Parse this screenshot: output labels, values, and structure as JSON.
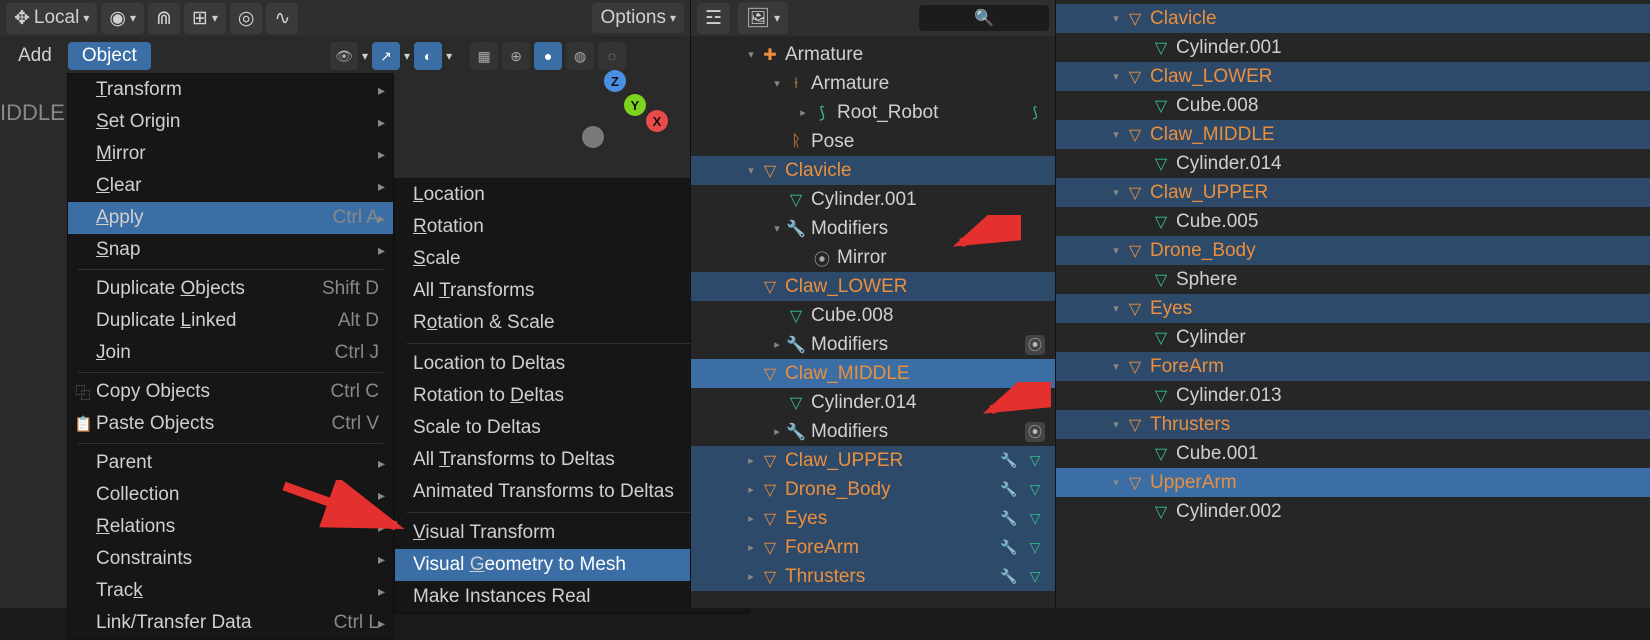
{
  "header": {
    "orientation_label": "Local",
    "options_label": "Options"
  },
  "viewport": {
    "add_label": "Add",
    "object_label": "Object",
    "side_text": "IDDLE"
  },
  "object_menu": {
    "items": [
      {
        "label": "Transform",
        "sub": true,
        "u": 0
      },
      {
        "label": "Set Origin",
        "sub": true,
        "u": 0
      },
      {
        "label": "Mirror",
        "sub": true,
        "u": 0
      },
      {
        "label": "Clear",
        "sub": true,
        "u": 0
      },
      {
        "label": "Apply",
        "shortcut": "Ctrl A",
        "sub": true,
        "sel": true,
        "u": 0
      },
      {
        "label": "Snap",
        "sub": true,
        "u": 0
      },
      {
        "sep": true
      },
      {
        "label": "Duplicate Objects",
        "shortcut": "Shift D",
        "u": 10
      },
      {
        "label": "Duplicate Linked",
        "shortcut": "Alt D",
        "u": 10
      },
      {
        "label": "Join",
        "shortcut": "Ctrl J",
        "u": 0
      },
      {
        "sep": true
      },
      {
        "label": "Copy Objects",
        "shortcut": "Ctrl C",
        "icon": "⿻"
      },
      {
        "label": "Paste Objects",
        "shortcut": "Ctrl V",
        "icon": "📋"
      },
      {
        "sep": true
      },
      {
        "label": "Parent",
        "sub": true
      },
      {
        "label": "Collection",
        "sub": true
      },
      {
        "label": "Relations",
        "sub": true,
        "u": 0
      },
      {
        "label": "Constraints",
        "sub": true
      },
      {
        "label": "Track",
        "sub": true,
        "u": 4
      },
      {
        "label": "Link/Transfer Data",
        "shortcut": "Ctrl L",
        "sub": true
      }
    ]
  },
  "apply_submenu": {
    "items": [
      {
        "label": "Location",
        "u": 0
      },
      {
        "label": "Rotation",
        "u": 0
      },
      {
        "label": "Scale",
        "u": 0
      },
      {
        "label": "All Transforms",
        "u": 4
      },
      {
        "label": "Rotation & Scale",
        "u": 1
      },
      {
        "sep": true
      },
      {
        "label": "Location to Deltas"
      },
      {
        "label": "Rotation to Deltas",
        "u": 12
      },
      {
        "label": "Scale to Deltas"
      },
      {
        "label": "All Transforms to Deltas",
        "u": 4
      },
      {
        "label": "Animated Transforms to Deltas"
      },
      {
        "sep": true
      },
      {
        "label": "Visual Transform",
        "u": 0
      },
      {
        "label": "Visual Geometry to Mesh",
        "sel": true,
        "u": 7
      },
      {
        "label": "Make Instances Real"
      }
    ]
  },
  "gizmo": {
    "x": "X",
    "y": "Y",
    "z": "Z"
  },
  "outliner_mid": [
    {
      "ind": 1,
      "tri": "▾",
      "ico": "arm",
      "label": "Armature",
      "cls": ""
    },
    {
      "ind": 2,
      "tri": "▾",
      "ico": "arm2",
      "label": "Armature"
    },
    {
      "ind": 3,
      "tri": "▸",
      "ico": "bone",
      "label": "Root_Robot",
      "trail_bone": true
    },
    {
      "ind": 2,
      "tri": "",
      "ico": "pose",
      "label": "Pose"
    },
    {
      "ind": 1,
      "tri": "▾",
      "ico": "mesh",
      "label": "Clavicle",
      "orange": true,
      "sel": true
    },
    {
      "ind": 2,
      "tri": "",
      "ico": "data",
      "label": "Cylinder.001"
    },
    {
      "ind": 2,
      "tri": "▾",
      "ico": "mod",
      "label": "Modifiers"
    },
    {
      "ind": 3,
      "tri": "",
      "ico": "mirror",
      "label": "Mirror",
      "arrow": 1
    },
    {
      "ind": 1,
      "tri": "",
      "ico": "mesh",
      "label": "Claw_LOWER",
      "orange": true,
      "sel": true
    },
    {
      "ind": 2,
      "tri": "",
      "ico": "data",
      "label": "Cube.008"
    },
    {
      "ind": 2,
      "tri": "▸",
      "ico": "mod",
      "label": "Modifiers",
      "trail_mirror": true
    },
    {
      "ind": 1,
      "tri": "",
      "ico": "mesh",
      "label": "Claw_MIDDLE",
      "orange": true,
      "active": true
    },
    {
      "ind": 2,
      "tri": "",
      "ico": "data",
      "label": "Cylinder.014"
    },
    {
      "ind": 2,
      "tri": "▸",
      "ico": "mod",
      "label": "Modifiers",
      "trail_mirror": true,
      "arrow": 2
    },
    {
      "ind": 1,
      "tri": "▸",
      "ico": "mesh",
      "label": "Claw_UPPER",
      "orange": true,
      "sel": true,
      "trail_md": true
    },
    {
      "ind": 1,
      "tri": "▸",
      "ico": "mesh",
      "label": "Drone_Body",
      "orange": true,
      "sel": true,
      "trail_md": true
    },
    {
      "ind": 1,
      "tri": "▸",
      "ico": "mesh",
      "label": "Eyes",
      "orange": true,
      "sel": true,
      "trail_md": true
    },
    {
      "ind": 1,
      "tri": "▸",
      "ico": "mesh",
      "label": "ForeArm",
      "orange": true,
      "sel": true,
      "trail_md": true
    },
    {
      "ind": 1,
      "tri": "▸",
      "ico": "mesh",
      "label": "Thrusters",
      "orange": true,
      "sel": true,
      "trail_md": true
    }
  ],
  "outliner_right": [
    {
      "ind": 1,
      "tri": "▾",
      "ico": "mesh",
      "label": "Clavicle",
      "orange": true,
      "sel": true
    },
    {
      "ind": 2,
      "tri": "",
      "ico": "data",
      "label": "Cylinder.001"
    },
    {
      "ind": 1,
      "tri": "▾",
      "ico": "mesh",
      "label": "Claw_LOWER",
      "orange": true,
      "sel": true
    },
    {
      "ind": 2,
      "tri": "",
      "ico": "data",
      "label": "Cube.008"
    },
    {
      "ind": 1,
      "tri": "▾",
      "ico": "mesh",
      "label": "Claw_MIDDLE",
      "orange": true,
      "sel": true
    },
    {
      "ind": 2,
      "tri": "",
      "ico": "data",
      "label": "Cylinder.014"
    },
    {
      "ind": 1,
      "tri": "▾",
      "ico": "mesh",
      "label": "Claw_UPPER",
      "orange": true,
      "sel": true
    },
    {
      "ind": 2,
      "tri": "",
      "ico": "data",
      "label": "Cube.005"
    },
    {
      "ind": 1,
      "tri": "▾",
      "ico": "mesh",
      "label": "Drone_Body",
      "orange": true,
      "sel": true
    },
    {
      "ind": 2,
      "tri": "",
      "ico": "data",
      "label": "Sphere"
    },
    {
      "ind": 1,
      "tri": "▾",
      "ico": "mesh",
      "label": "Eyes",
      "orange": true,
      "sel": true
    },
    {
      "ind": 2,
      "tri": "",
      "ico": "data",
      "label": "Cylinder"
    },
    {
      "ind": 1,
      "tri": "▾",
      "ico": "mesh",
      "label": "ForeArm",
      "orange": true,
      "sel": true
    },
    {
      "ind": 2,
      "tri": "",
      "ico": "data",
      "label": "Cylinder.013"
    },
    {
      "ind": 1,
      "tri": "▾",
      "ico": "mesh",
      "label": "Thrusters",
      "orange": true,
      "sel": true
    },
    {
      "ind": 2,
      "tri": "",
      "ico": "data",
      "label": "Cube.001"
    },
    {
      "ind": 1,
      "tri": "▾",
      "ico": "mesh",
      "label": "UpperArm",
      "orange": true,
      "active": true
    },
    {
      "ind": 2,
      "tri": "",
      "ico": "data",
      "label": "Cylinder.002"
    }
  ],
  "colors": {
    "bg": "#262626",
    "sel": "#2e4a6b",
    "active": "#3b6ea5",
    "orange": "#ea8f3c",
    "green": "#33c18e",
    "blue": "#6ea5e0",
    "red": "#e53030"
  }
}
